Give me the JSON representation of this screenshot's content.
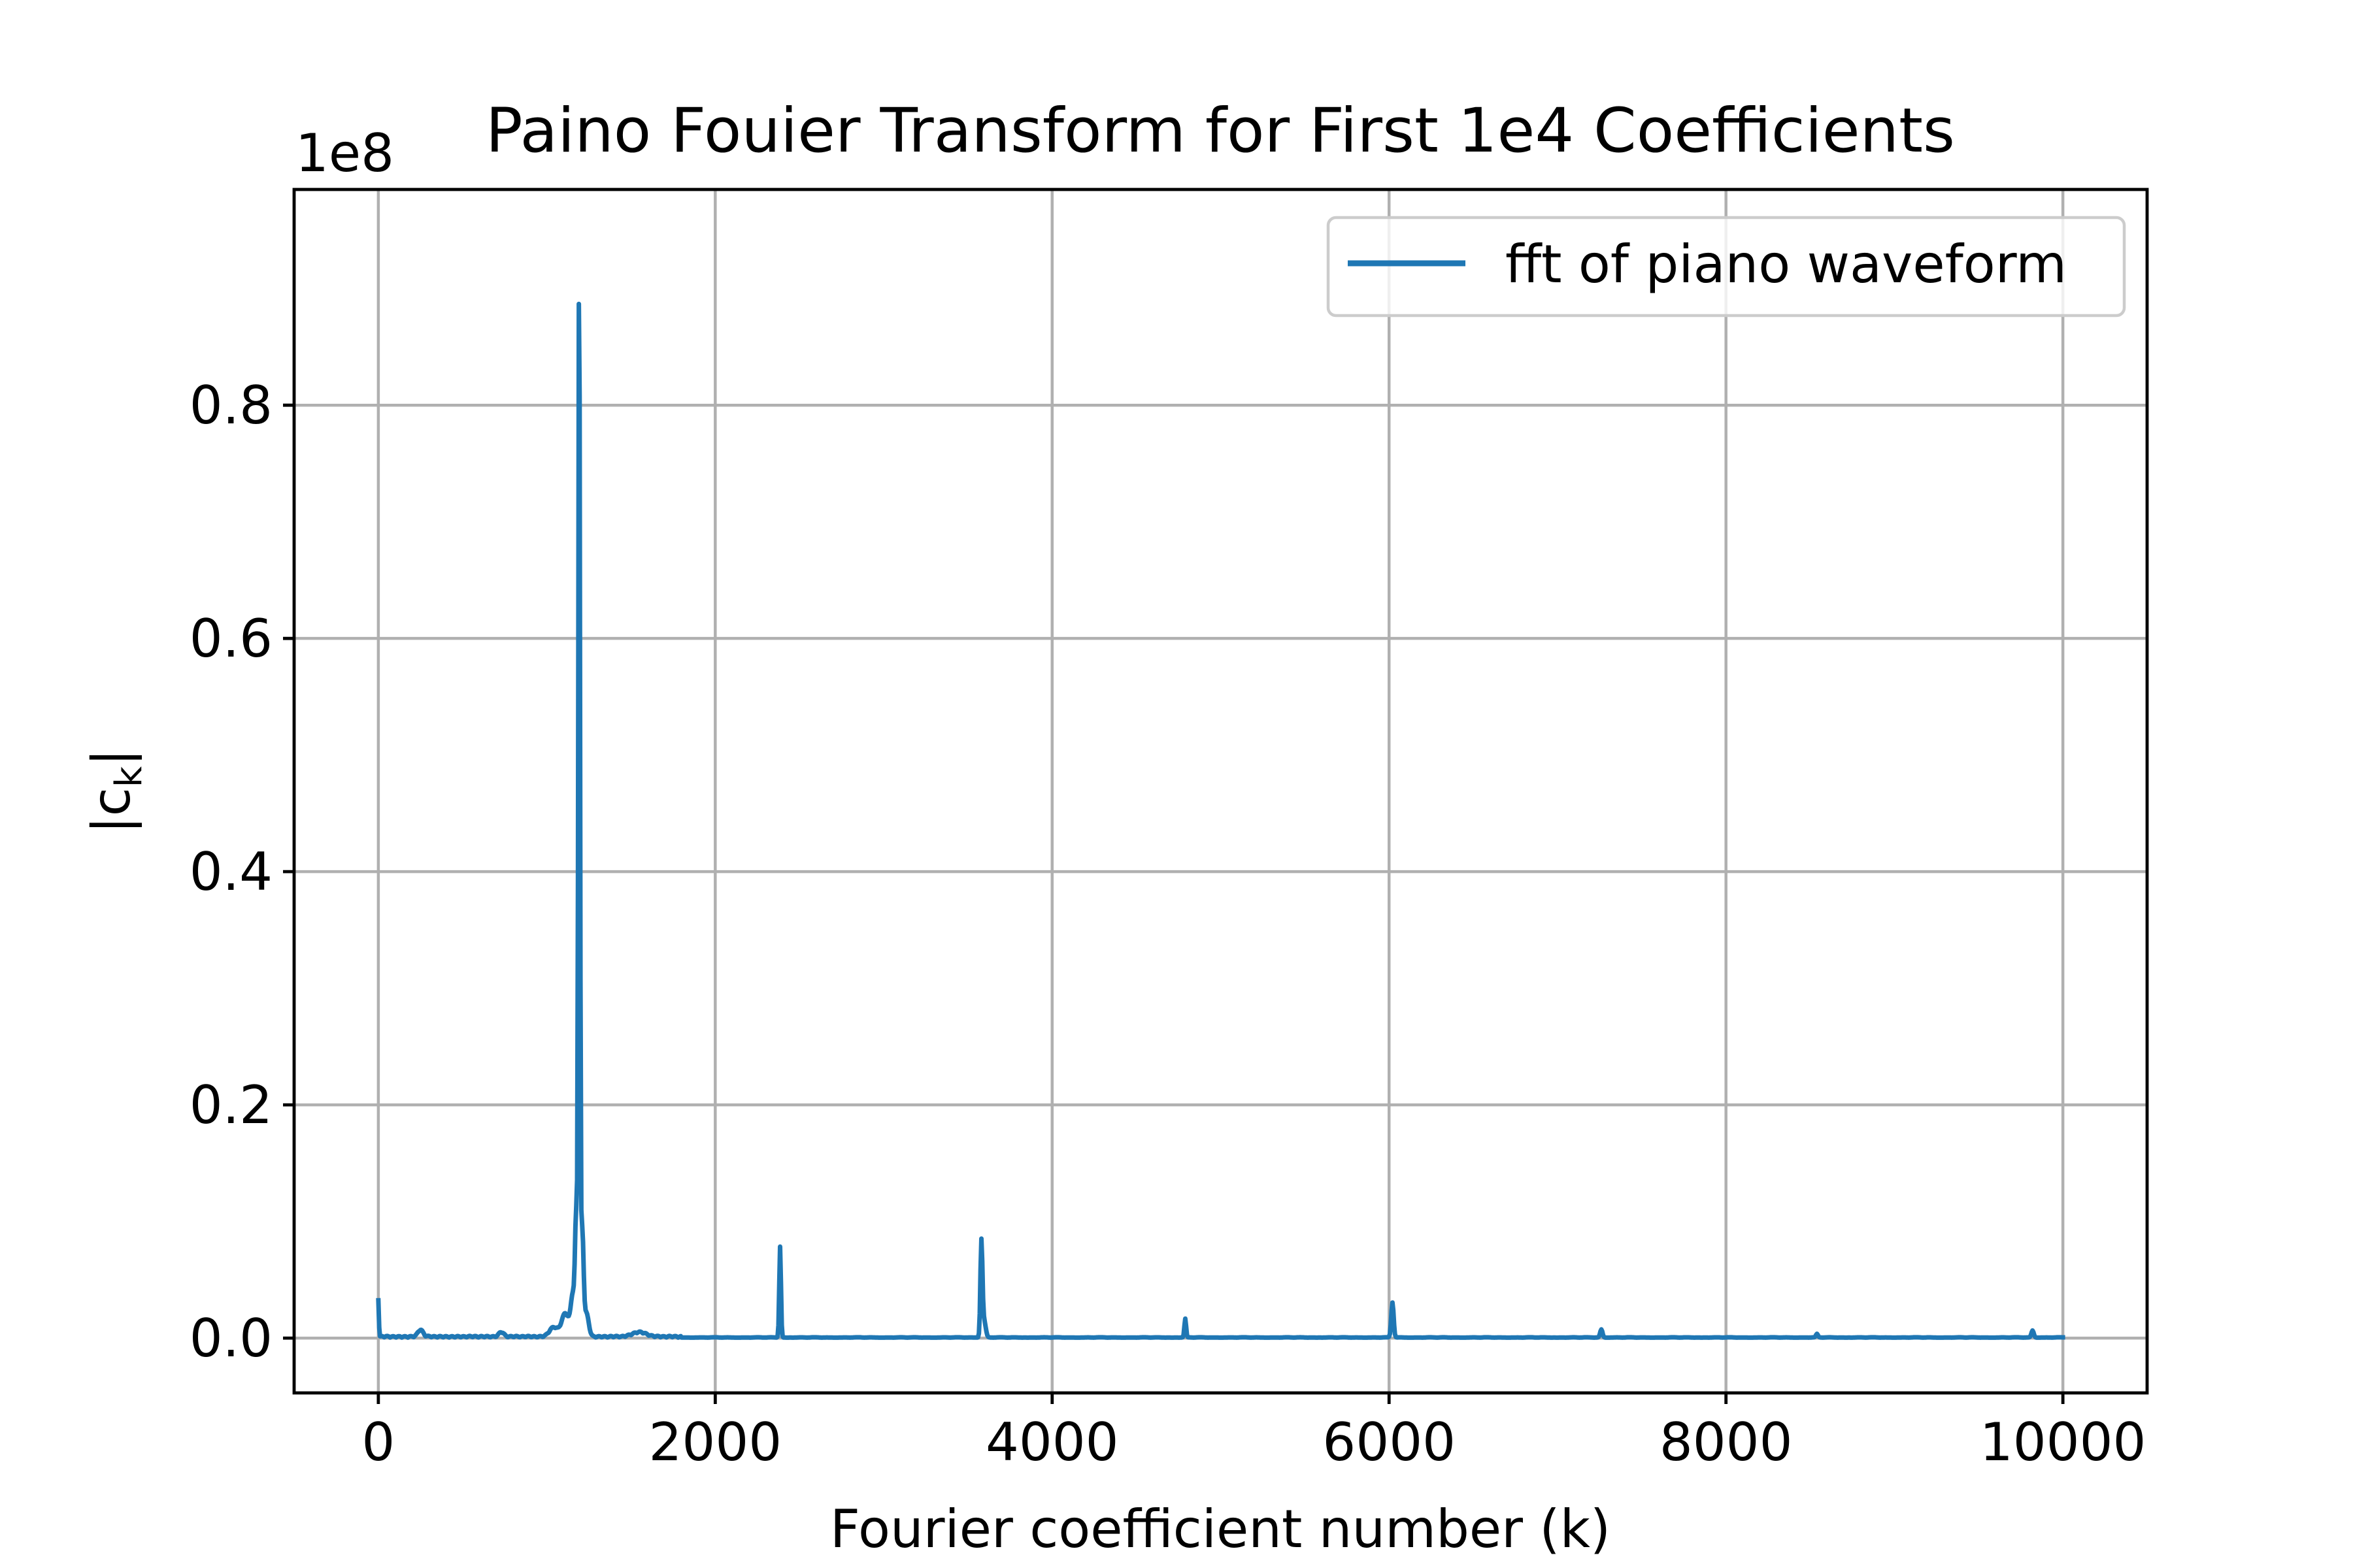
{
  "chart_data": {
    "type": "line",
    "title": "Paino Fouier Transform for First 1e4 Coefficients",
    "xlabel": "Fourier coefficient number (k)",
    "ylabel_base": "|c",
    "ylabel_sub": "k",
    "ylabel_end": "|",
    "y_offset_text": "1e8",
    "xlim": [
      -500,
      10500
    ],
    "ylim": [
      -0.047,
      0.985
    ],
    "y_scale_factor": 100000000.0,
    "xticks": [
      0,
      2000,
      4000,
      6000,
      8000,
      10000
    ],
    "xtick_labels": [
      "0",
      "2000",
      "4000",
      "6000",
      "8000",
      "10000"
    ],
    "yticks": [
      0.0,
      0.2,
      0.4,
      0.6,
      0.8
    ],
    "ytick_labels": [
      "0.0",
      "0.2",
      "0.4",
      "0.6",
      "0.8"
    ],
    "grid": true,
    "legend_position": "upper right",
    "series": [
      {
        "name": "fft of piano waveform",
        "color": "#1f77b4",
        "peaks": [
          {
            "x": 0,
            "y": 0.032,
            "w": 3
          },
          {
            "x": 250,
            "y": 0.006,
            "w": 15
          },
          {
            "x": 730,
            "y": 0.004,
            "w": 15
          },
          {
            "x": 1040,
            "y": 0.008,
            "w": 25
          },
          {
            "x": 1110,
            "y": 0.02,
            "w": 22
          },
          {
            "x": 1155,
            "y": 0.035,
            "w": 12
          },
          {
            "x": 1175,
            "y": 0.1,
            "w": 7
          },
          {
            "x": 1192,
            "y": 0.944,
            "w": 5
          },
          {
            "x": 1210,
            "y": 0.09,
            "w": 8
          },
          {
            "x": 1235,
            "y": 0.02,
            "w": 14
          },
          {
            "x": 1550,
            "y": 0.004,
            "w": 40
          },
          {
            "x": 2385,
            "y": 0.078,
            "w": 5
          },
          {
            "x": 3580,
            "y": 0.08,
            "w": 6
          },
          {
            "x": 3595,
            "y": 0.015,
            "w": 10
          },
          {
            "x": 4790,
            "y": 0.016,
            "w": 5
          },
          {
            "x": 6020,
            "y": 0.03,
            "w": 7
          },
          {
            "x": 7260,
            "y": 0.007,
            "w": 7
          },
          {
            "x": 8540,
            "y": 0.003,
            "w": 6
          },
          {
            "x": 9820,
            "y": 0.006,
            "w": 7
          }
        ]
      }
    ]
  }
}
